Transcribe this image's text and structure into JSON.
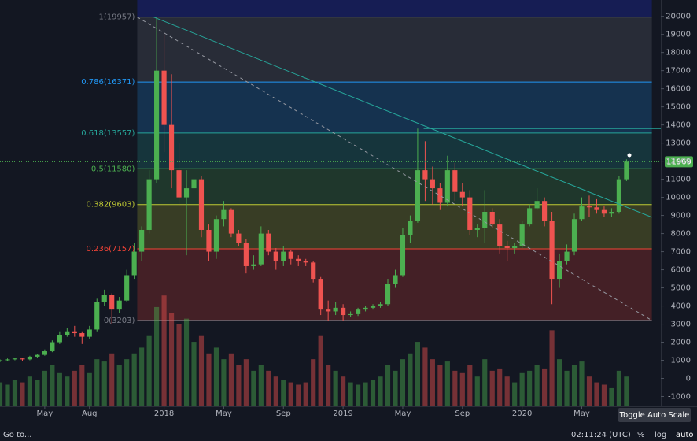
{
  "chart_data": {
    "type": "candlestick",
    "xlim": [
      1,
      45.3
    ],
    "xticks": [
      {
        "value": 4,
        "label": "May"
      },
      {
        "value": 7,
        "label": "Aug"
      },
      {
        "value": 12,
        "label": "2018"
      },
      {
        "value": 16,
        "label": "May"
      },
      {
        "value": 20,
        "label": "Sep"
      },
      {
        "value": 24,
        "label": "2019"
      },
      {
        "value": 28,
        "label": "May"
      },
      {
        "value": 32,
        "label": "Sep"
      },
      {
        "value": 36,
        "label": "2020"
      },
      {
        "value": 40,
        "label": "May"
      }
    ],
    "ylim": [
      -1500,
      20900
    ],
    "yticks": [
      -1000,
      0,
      1000,
      2000,
      3000,
      4000,
      5000,
      6000,
      7000,
      8000,
      9000,
      10000,
      11000,
      12000,
      13000,
      14000,
      15000,
      16000,
      17000,
      18000,
      19000,
      20000
    ],
    "y2lim": [
      0,
      350
    ],
    "grid": false,
    "up_color": "#4caf50",
    "down_color": "#ef5350",
    "x": [
      1,
      1.5,
      2,
      2.5,
      3,
      3.5,
      4,
      4.5,
      5,
      5.5,
      6,
      6.5,
      7,
      7.5,
      8,
      8.5,
      9,
      9.5,
      10,
      10.5,
      11,
      11.5,
      12,
      12.5,
      13,
      13.5,
      14,
      14.5,
      15,
      15.5,
      16,
      16.5,
      17,
      17.5,
      18,
      18.5,
      19,
      19.5,
      20,
      20.5,
      21,
      21.5,
      22,
      22.5,
      23,
      23.5,
      24,
      24.5,
      25,
      25.5,
      26,
      26.5,
      27,
      27.5,
      28,
      28.5,
      29,
      29.5,
      30,
      30.5,
      31,
      31.5,
      32,
      32.5,
      33,
      33.5,
      34,
      34.5,
      35,
      35.5,
      36,
      36.5,
      37,
      37.5,
      38,
      38.5,
      39,
      39.5,
      40,
      40.5,
      41,
      41.5,
      42,
      42.5,
      43
    ],
    "open": [
      950,
      1000,
      1050,
      1100,
      1050,
      1200,
      1300,
      1500,
      2000,
      2400,
      2600,
      2500,
      2300,
      2700,
      4200,
      4600,
      3800,
      4300,
      5700,
      7000,
      8200,
      11000,
      17000,
      14000,
      11500,
      10000,
      10500,
      11000,
      8200,
      7000,
      8800,
      9300,
      8000,
      7500,
      6200,
      6300,
      8000,
      7000,
      6500,
      7000,
      6600,
      6500,
      6400,
      5500,
      3800,
      3700,
      3900,
      3500,
      3550,
      3800,
      3900,
      4000,
      4100,
      5200,
      5700,
      7900,
      8700,
      11500,
      11000,
      10500,
      9700,
      11500,
      10300,
      10000,
      8200,
      8300,
      9200,
      8500,
      7300,
      7200,
      7300,
      8500,
      9400,
      9800,
      8700,
      5500,
      6500,
      7000,
      8800,
      9500,
      9450,
      9300,
      9100,
      9200,
      11000
    ],
    "high": [
      1050,
      1100,
      1150,
      1150,
      1250,
      1350,
      1600,
      2100,
      2600,
      2800,
      2900,
      2600,
      2900,
      4400,
      4900,
      4700,
      4500,
      6000,
      7500,
      8400,
      11500,
      19957,
      19000,
      16800,
      13000,
      11500,
      11700,
      11200,
      8500,
      9000,
      9800,
      9400,
      8200,
      7700,
      6800,
      8400,
      8200,
      7200,
      7300,
      7100,
      6800,
      6600,
      6500,
      5600,
      4300,
      4200,
      4100,
      3700,
      3900,
      4000,
      4100,
      4200,
      5500,
      6000,
      8300,
      9000,
      13800,
      13100,
      11700,
      10800,
      12300,
      11900,
      10800,
      10400,
      8500,
      10400,
      9400,
      8800,
      7600,
      7500,
      8700,
      9600,
      10500,
      10000,
      9200,
      6900,
      7400,
      9100,
      10000,
      10100,
      9900,
      9500,
      9400,
      11200,
      12100
    ],
    "low": [
      900,
      950,
      1000,
      950,
      1000,
      1150,
      1250,
      1450,
      1900,
      2300,
      2300,
      1900,
      2200,
      2600,
      4000,
      3000,
      3600,
      4200,
      5500,
      6500,
      8000,
      10800,
      12500,
      10500,
      9500,
      6800,
      9500,
      7800,
      6500,
      6600,
      8400,
      7800,
      7300,
      5800,
      6000,
      6200,
      6800,
      6000,
      6200,
      6300,
      6200,
      6200,
      5300,
      3500,
      3200,
      3500,
      3203,
      3400,
      3450,
      3700,
      3800,
      3900,
      4000,
      5000,
      5600,
      7500,
      8600,
      9800,
      9600,
      9300,
      9500,
      9800,
      9500,
      7900,
      7800,
      7500,
      8300,
      6900,
      6500,
      6900,
      7200,
      8400,
      9300,
      8400,
      4100,
      5000,
      6300,
      6800,
      8700,
      8900,
      9100,
      8900,
      8900,
      9100,
      10900
    ],
    "close": [
      1000,
      1050,
      1100,
      1050,
      1200,
      1300,
      1500,
      2000,
      2400,
      2600,
      2500,
      2300,
      2700,
      4200,
      4600,
      3800,
      4300,
      5700,
      7000,
      8200,
      11000,
      17000,
      14000,
      11500,
      10000,
      10500,
      11000,
      8200,
      7000,
      8800,
      9300,
      8000,
      7500,
      6200,
      6300,
      8000,
      7000,
      6500,
      7000,
      6600,
      6500,
      6400,
      5500,
      3800,
      3700,
      3900,
      3500,
      3550,
      3800,
      3900,
      4000,
      4100,
      5200,
      5700,
      7900,
      8700,
      11500,
      11000,
      10500,
      9700,
      11500,
      10300,
      10000,
      8200,
      8300,
      9200,
      8500,
      7300,
      7200,
      7300,
      8500,
      9400,
      9800,
      8700,
      5500,
      6500,
      7000,
      8800,
      9500,
      9450,
      9300,
      9100,
      9200,
      11000,
      11969
    ],
    "volume": [
      20,
      18,
      22,
      20,
      25,
      22,
      30,
      35,
      28,
      25,
      30,
      35,
      28,
      40,
      38,
      45,
      35,
      40,
      45,
      50,
      60,
      85,
      95,
      80,
      70,
      75,
      55,
      60,
      45,
      50,
      40,
      45,
      35,
      40,
      30,
      35,
      30,
      25,
      22,
      20,
      18,
      20,
      40,
      60,
      35,
      30,
      25,
      20,
      18,
      20,
      22,
      25,
      35,
      30,
      40,
      45,
      55,
      50,
      40,
      35,
      38,
      30,
      28,
      35,
      25,
      40,
      30,
      32,
      25,
      20,
      28,
      30,
      35,
      32,
      65,
      40,
      30,
      35,
      38,
      25,
      20,
      18,
      15,
      30,
      25
    ],
    "fib_range": [
      10.2,
      44.7
    ],
    "fib_levels": [
      {
        "label": "1(19957)",
        "value": 19957,
        "color": "#787b86"
      },
      {
        "label": "0.786(16371)",
        "value": 16371,
        "color": "#2196f3"
      },
      {
        "label": "0.618(13557)",
        "value": 13557,
        "color": "#26a69a"
      },
      {
        "label": "0.5(11580)",
        "value": 11580,
        "color": "#4caf50"
      },
      {
        "label": "0.382(9603)",
        "value": 9603,
        "color": "#c0ca33"
      },
      {
        "label": "0.236(7157)",
        "value": 7157,
        "color": "#f44336"
      },
      {
        "label": "0(3203)",
        "value": 3203,
        "color": "#787b86"
      }
    ],
    "trendlines": [
      {
        "points": [
          [
            11.3,
            19957
          ],
          [
            44.7,
            8900
          ]
        ],
        "color": "#26a69a",
        "dashed": false
      },
      {
        "points": [
          [
            10.2,
            19957
          ],
          [
            44.7,
            3203
          ]
        ],
        "color": "#9598a1",
        "dashed": true
      },
      {
        "points": [
          [
            29.4,
            13800
          ],
          [
            45.3,
            13800
          ]
        ],
        "color": "#26a69a",
        "dashed": false
      }
    ],
    "last_price": 11969
  },
  "ui": {
    "goto": "Go to...",
    "clock": "02:11:24 (UTC)",
    "percent": "%",
    "log": "log",
    "auto": "auto",
    "tooltip": "Toggle Auto Scale"
  }
}
